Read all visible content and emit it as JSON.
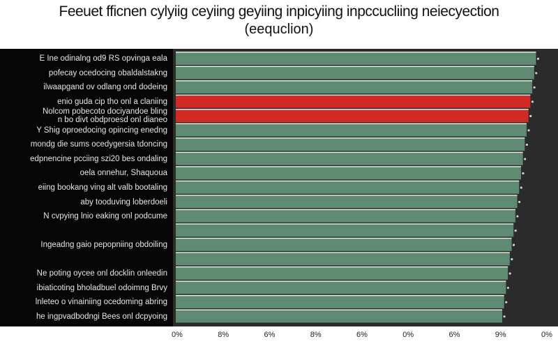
{
  "chart_data": {
    "type": "bar",
    "orientation": "horizontal",
    "title": "Feeuet fficnen cylyiig ceyiing geyiing inpicyiing inpccucliing neiecyection",
    "subtitle": "(eequclion)",
    "categories": [
      "E Ine odinalng od9 RS opvinga eala",
      "pofecay ocedocing obaldalstakng",
      "ilwaapgand ov odlang ond dodeing",
      "enio guda cip tho onl a claniing",
      "Nolcom pobecoto dociyandoe bling\nn bo divt obdproesd onl dianeo",
      "Y Shig oproedocing opincing enedng",
      "mondg die sums ocedygersia tdoncing",
      "edpnencine pcciing szi20 bes ondaling",
      "oela onnehur, Shaquoua",
      "eiing bookang ving alt valb bootaling",
      "aby tooduving loberdoeli",
      "N cvpying lnio eaking onl podcume",
      "",
      "Ingeadng gaio pepopniing obdoiling",
      "",
      "Ne poting oycee onl docklin onleedin",
      "ibiaticoting bholadbuel odoimng Brvy",
      "lnleteo o vinainiing ocedoming abring",
      "he ingpvadbodngi Bees onl dcpyoing"
    ],
    "values": [
      96,
      95.5,
      95,
      94.5,
      94,
      93.5,
      93,
      92.5,
      92,
      91.5,
      91,
      90.5,
      90,
      89.5,
      89,
      88.5,
      88,
      87.5,
      87
    ],
    "highlight_indices": [
      3,
      4
    ],
    "colors": {
      "bar": "#5d8a70",
      "highlight": "#d42a26",
      "separator": "#e8efe9",
      "background": "#2b2b2b"
    },
    "xlim": [
      0,
      100
    ],
    "x_tick_labels": [
      "0%",
      "8%",
      "6%",
      "8%",
      "6%",
      "0%",
      "6%",
      "9%",
      "0%"
    ],
    "xlabel": "",
    "ylabel": "",
    "grid": false,
    "legend": "none"
  }
}
